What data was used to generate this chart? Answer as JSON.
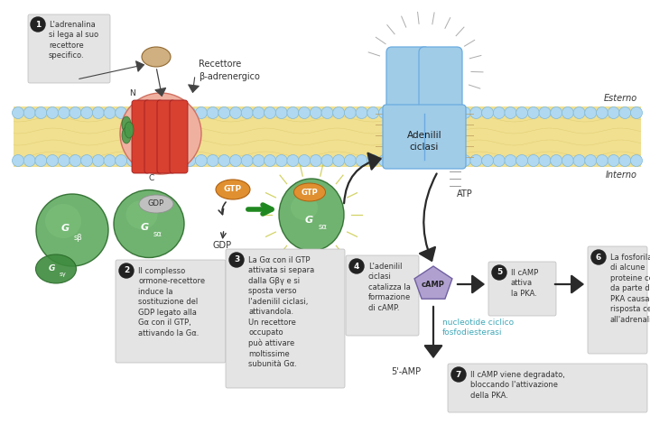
{
  "bg": "#ffffff",
  "mem_fill": "#f0e090",
  "mem_stroke": "#c8a040",
  "bead_fill": "#b0d8f0",
  "bead_edge": "#80b8d8",
  "green_main": "#60aa60",
  "green_mid": "#3d8a3d",
  "green_dark": "#2a6a2a",
  "green_bright": "#50c050",
  "red_main": "#d84030",
  "red_light": "#e87060",
  "red_outer": "#c84838",
  "blue_main": "#a0cce8",
  "blue_edge": "#6aabe0",
  "blue_inner": "#c8e4f4",
  "orange_main": "#e09030",
  "orange_edge": "#b06010",
  "purple_main": "#b0a0d0",
  "purple_edge": "#7060a0",
  "box_bg": "#e4e4e4",
  "dark": "#333333",
  "teal": "#40a8b8",
  "tan": "#d0b080",
  "tan_edge": "#906830",
  "gray_inner": "#c0c0c0",
  "gray_edge": "#909090",
  "arrow": "#2a2a2a",
  "green_arrow": "#208820",
  "step1": "L'adrenalina\nsi lega al suo\nrecettore\nspecifico.",
  "step2": "Il complesso\normone-recettore\ninduce la\nsostituzione del\nGDP legato alla\nGα con il GTP,\nattivando la Gα.",
  "step3": "La Gα con il GTP\nattivata si separa\ndalla Gβγ e si\nsposta verso\nl'adenilil ciclasi,\nattivandola.\nUn recettore\noccupato\npuò attivare\nmoltissime\nsubunità Gα.",
  "step4": "L'adenilil\nciclasi\ncatalizza la\nformazione\ndi cAMP.",
  "step5": "Il cAMP\nattiva\nla PKA.",
  "step6": "La fosforilazione\ndi alcune\nproteine cellulari\nda parte della\nPKA causa la\nrisposta cellulare\nall'adrenalina.",
  "step7": "Il cAMP viene degradato,\nbloccando l'attivazione\ndella PKA."
}
